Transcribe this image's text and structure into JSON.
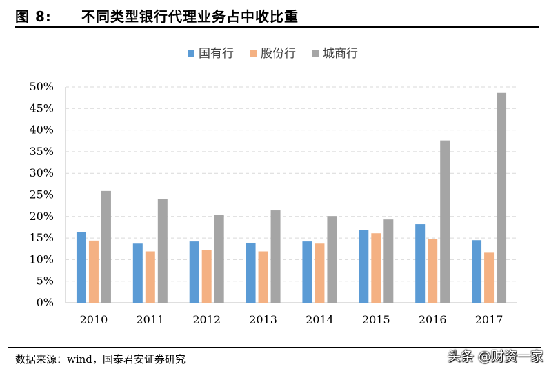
{
  "figure": {
    "number_label": "图 8:",
    "title": "不同类型银行代理业务占中收比重"
  },
  "source": "数据来源：wind，国泰君安证券研究",
  "watermark": "头条 @财资一家",
  "colors": {
    "series1": "#5B9BD5",
    "series2": "#F4B183",
    "series3": "#A5A5A5",
    "grid": "#D9D9D9",
    "axis": "#BFBFBF"
  },
  "chart_data": {
    "type": "bar",
    "title": "",
    "xlabel": "",
    "ylabel": "",
    "categories": [
      "2010",
      "2011",
      "2012",
      "2013",
      "2014",
      "2015",
      "2016",
      "2017"
    ],
    "series": [
      {
        "name": "国有行",
        "values": [
          16.3,
          13.7,
          14.2,
          13.9,
          14.2,
          16.8,
          18.2,
          14.5
        ]
      },
      {
        "name": "股份行",
        "values": [
          14.4,
          11.9,
          12.3,
          11.9,
          13.7,
          16.1,
          14.7,
          11.6
        ]
      },
      {
        "name": "城商行",
        "values": [
          25.9,
          24.1,
          20.3,
          21.4,
          20.1,
          19.3,
          37.6,
          48.6
        ]
      }
    ],
    "ylim": [
      0,
      50
    ],
    "yticks": [
      "0%",
      "5%",
      "10%",
      "15%",
      "20%",
      "25%",
      "30%",
      "35%",
      "40%",
      "45%",
      "50%"
    ],
    "grid": "horizontal dashed",
    "legend_position": "top"
  }
}
